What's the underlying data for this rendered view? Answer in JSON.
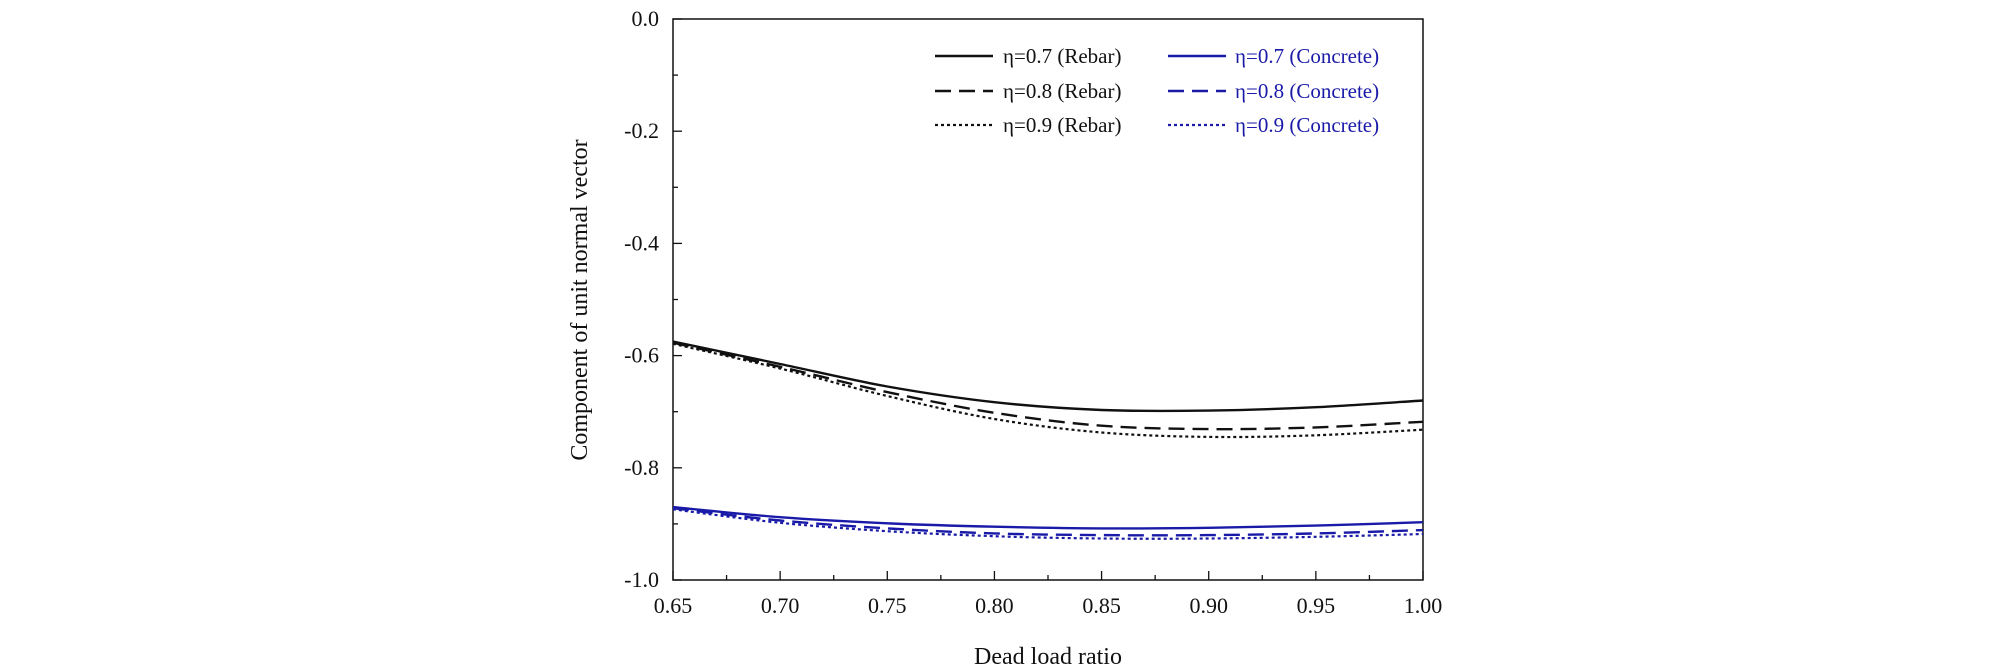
{
  "chart_data": {
    "type": "line",
    "title": "",
    "xlabel": "Dead load ratio",
    "ylabel": "Component of unit normal vector",
    "xlim": [
      0.65,
      1.0
    ],
    "ylim": [
      -1.0,
      0.0
    ],
    "xticks": [
      "0.65",
      "0.70",
      "0.75",
      "0.80",
      "0.85",
      "0.90",
      "0.95",
      "1.00"
    ],
    "yticks": [
      "0.0",
      "-0.2",
      "-0.4",
      "-0.6",
      "-0.8",
      "-1.0"
    ],
    "grid": false,
    "legend_position": "top-right",
    "colors": {
      "rebar": "#111111",
      "concrete": "#1a1aa8"
    },
    "x": [
      0.65,
      0.7,
      0.75,
      0.8,
      0.85,
      0.9,
      0.95,
      1.0
    ],
    "series": [
      {
        "name": "η=0.7  (Rebar)",
        "group": "rebar",
        "style": "solid",
        "values": [
          -0.575,
          -0.615,
          -0.655,
          -0.683,
          -0.697,
          -0.698,
          -0.692,
          -0.68
        ]
      },
      {
        "name": "η=0.8  (Rebar)",
        "group": "rebar",
        "style": "dashed",
        "values": [
          -0.577,
          -0.62,
          -0.665,
          -0.702,
          -0.725,
          -0.731,
          -0.728,
          -0.718
        ]
      },
      {
        "name": "η=0.9  (Rebar)",
        "group": "rebar",
        "style": "dotted",
        "values": [
          -0.579,
          -0.623,
          -0.672,
          -0.713,
          -0.737,
          -0.745,
          -0.742,
          -0.732
        ]
      },
      {
        "name": "η=0.7  (Concrete)",
        "group": "concrete",
        "style": "solid",
        "values": [
          -0.87,
          -0.888,
          -0.899,
          -0.905,
          -0.908,
          -0.907,
          -0.903,
          -0.897
        ]
      },
      {
        "name": "η=0.8  (Concrete)",
        "group": "concrete",
        "style": "dashed",
        "values": [
          -0.872,
          -0.894,
          -0.908,
          -0.917,
          -0.92,
          -0.92,
          -0.917,
          -0.911
        ]
      },
      {
        "name": "η=0.9  (Concrete)",
        "group": "concrete",
        "style": "dotted",
        "values": [
          -0.874,
          -0.898,
          -0.913,
          -0.922,
          -0.926,
          -0.926,
          -0.923,
          -0.918
        ]
      }
    ]
  }
}
